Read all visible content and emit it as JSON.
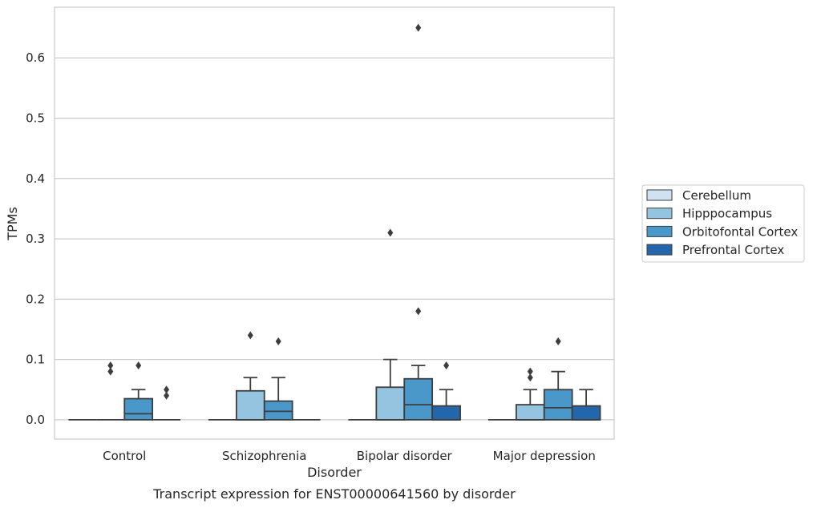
{
  "chart_data": {
    "type": "box",
    "title": "",
    "caption": "Transcript expression for ENST00000641560 by disorder",
    "xlabel": "Disorder",
    "ylabel": "TPMs",
    "ylim": [
      -0.032,
      0.684
    ],
    "yticks": [
      0.0,
      0.1,
      0.2,
      0.3,
      0.4,
      0.5,
      0.6
    ],
    "ytick_labels": [
      "0.0",
      "0.1",
      "0.2",
      "0.3",
      "0.4",
      "0.5",
      "0.6"
    ],
    "grid": "horizontal",
    "legend_position": "right",
    "categories": [
      "Control",
      "Schizophrenia",
      "Bipolar disorder",
      "Major depression"
    ],
    "series": [
      {
        "name": "Cerebellum",
        "color": "#d0e1f2",
        "boxes": [
          {
            "category": "Control",
            "whislo": 0,
            "q1": 0,
            "med": 0,
            "q3": 0,
            "whishi": 0,
            "fliers": []
          },
          {
            "category": "Schizophrenia",
            "whislo": 0,
            "q1": 0,
            "med": 0,
            "q3": 0,
            "whishi": 0,
            "fliers": []
          },
          {
            "category": "Bipolar disorder",
            "whislo": 0,
            "q1": 0,
            "med": 0,
            "q3": 0,
            "whishi": 0,
            "fliers": []
          },
          {
            "category": "Major depression",
            "whislo": 0,
            "q1": 0,
            "med": 0,
            "q3": 0,
            "whishi": 0,
            "fliers": []
          }
        ]
      },
      {
        "name": "Hipppocampus",
        "color": "#94c4df",
        "boxes": [
          {
            "category": "Control",
            "whislo": 0,
            "q1": 0,
            "med": 0,
            "q3": 0,
            "whishi": 0,
            "fliers": [
              0.08,
              0.09
            ]
          },
          {
            "category": "Schizophrenia",
            "whislo": 0,
            "q1": 0,
            "med": 0,
            "q3": 0.048,
            "whishi": 0.07,
            "fliers": [
              0.14
            ]
          },
          {
            "category": "Bipolar disorder",
            "whislo": 0,
            "q1": 0,
            "med": 0,
            "q3": 0.054,
            "whishi": 0.1,
            "fliers": [
              0.31
            ]
          },
          {
            "category": "Major depression",
            "whislo": 0,
            "q1": 0,
            "med": 0,
            "q3": 0.025,
            "whishi": 0.05,
            "fliers": [
              0.07,
              0.08
            ]
          }
        ]
      },
      {
        "name": "Orbitofontal Cortex",
        "color": "#4a98c9",
        "boxes": [
          {
            "category": "Control",
            "whislo": 0,
            "q1": 0,
            "med": 0.01,
            "q3": 0.035,
            "whishi": 0.05,
            "fliers": [
              0.09
            ]
          },
          {
            "category": "Schizophrenia",
            "whislo": 0,
            "q1": 0,
            "med": 0.014,
            "q3": 0.031,
            "whishi": 0.07,
            "fliers": [
              0.13
            ]
          },
          {
            "category": "Bipolar disorder",
            "whislo": 0,
            "q1": 0,
            "med": 0.025,
            "q3": 0.068,
            "whishi": 0.09,
            "fliers": [
              0.18,
              0.65
            ]
          },
          {
            "category": "Major depression",
            "whislo": 0,
            "q1": 0,
            "med": 0.02,
            "q3": 0.05,
            "whishi": 0.08,
            "fliers": [
              0.13
            ]
          }
        ]
      },
      {
        "name": "Prefrontal Cortex",
        "color": "#2366ab",
        "boxes": [
          {
            "category": "Control",
            "whislo": 0,
            "q1": 0,
            "med": 0,
            "q3": 0,
            "whishi": 0,
            "fliers": [
              0.04,
              0.05
            ]
          },
          {
            "category": "Schizophrenia",
            "whislo": 0,
            "q1": 0,
            "med": 0,
            "q3": 0,
            "whishi": 0,
            "fliers": []
          },
          {
            "category": "Bipolar disorder",
            "whislo": 0,
            "q1": 0,
            "med": 0,
            "q3": 0.023,
            "whishi": 0.05,
            "fliers": [
              0.09
            ]
          },
          {
            "category": "Major depression",
            "whislo": 0,
            "q1": 0,
            "med": 0,
            "q3": 0.023,
            "whishi": 0.05,
            "fliers": []
          }
        ]
      }
    ]
  }
}
